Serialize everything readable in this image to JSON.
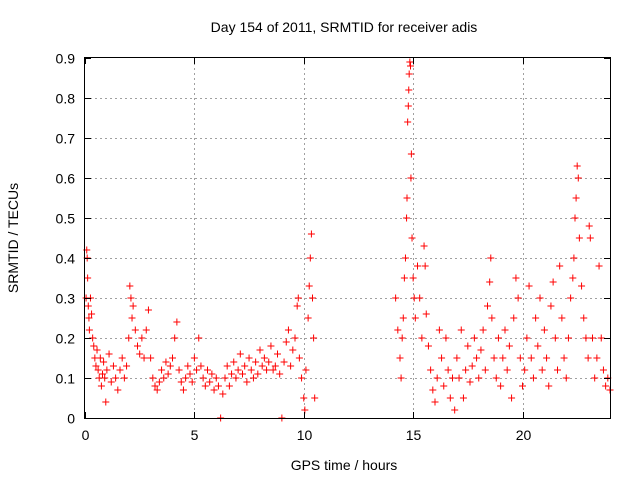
{
  "chart_data": {
    "type": "scatter",
    "title": "Day 154 of 2011, SRMTID for receiver adis",
    "xlabel": "GPS time / hours",
    "ylabel": "SRMTID / TECUs",
    "xlim": [
      0,
      24
    ],
    "ylim": [
      0,
      0.9
    ],
    "xticks": [
      0,
      5,
      10,
      15,
      20
    ],
    "yticks": [
      0,
      0.1,
      0.2,
      0.3,
      0.4,
      0.5,
      0.6,
      0.7,
      0.8,
      0.9
    ],
    "grid": true,
    "marker": "plus",
    "color": "#ff0000",
    "series": [
      {
        "name": "SRMTID",
        "points": [
          [
            0.05,
            0.3
          ],
          [
            0.08,
            0.42
          ],
          [
            0.1,
            0.4
          ],
          [
            0.12,
            0.35
          ],
          [
            0.15,
            0.28
          ],
          [
            0.18,
            0.25
          ],
          [
            0.2,
            0.22
          ],
          [
            0.25,
            0.3
          ],
          [
            0.3,
            0.26
          ],
          [
            0.35,
            0.2
          ],
          [
            0.4,
            0.18
          ],
          [
            0.45,
            0.15
          ],
          [
            0.5,
            0.13
          ],
          [
            0.55,
            0.17
          ],
          [
            0.6,
            0.12
          ],
          [
            0.65,
            0.1
          ],
          [
            0.7,
            0.15
          ],
          [
            0.75,
            0.08
          ],
          [
            0.8,
            0.11
          ],
          [
            0.85,
            0.14
          ],
          [
            0.9,
            0.1
          ],
          [
            0.95,
            0.04
          ],
          [
            1.0,
            0.12
          ],
          [
            1.1,
            0.16
          ],
          [
            1.2,
            0.09
          ],
          [
            1.3,
            0.13
          ],
          [
            1.4,
            0.1
          ],
          [
            1.5,
            0.07
          ],
          [
            1.6,
            0.12
          ],
          [
            1.7,
            0.15
          ],
          [
            1.8,
            0.1
          ],
          [
            1.9,
            0.13
          ],
          [
            2.0,
            0.2
          ],
          [
            2.05,
            0.33
          ],
          [
            2.1,
            0.3
          ],
          [
            2.15,
            0.25
          ],
          [
            2.2,
            0.28
          ],
          [
            2.3,
            0.22
          ],
          [
            2.4,
            0.18
          ],
          [
            2.5,
            0.16
          ],
          [
            2.6,
            0.2
          ],
          [
            2.7,
            0.15
          ],
          [
            2.8,
            0.22
          ],
          [
            2.9,
            0.27
          ],
          [
            3.0,
            0.15
          ],
          [
            3.1,
            0.1
          ],
          [
            3.2,
            0.08
          ],
          [
            3.3,
            0.07
          ],
          [
            3.4,
            0.09
          ],
          [
            3.5,
            0.12
          ],
          [
            3.6,
            0.1
          ],
          [
            3.7,
            0.14
          ],
          [
            3.8,
            0.11
          ],
          [
            3.9,
            0.13
          ],
          [
            4.0,
            0.15
          ],
          [
            4.1,
            0.2
          ],
          [
            4.2,
            0.24
          ],
          [
            4.3,
            0.12
          ],
          [
            4.4,
            0.09
          ],
          [
            4.5,
            0.07
          ],
          [
            4.6,
            0.1
          ],
          [
            4.7,
            0.13
          ],
          [
            4.8,
            0.11
          ],
          [
            4.9,
            0.09
          ],
          [
            5.0,
            0.15
          ],
          [
            5.1,
            0.12
          ],
          [
            5.2,
            0.2
          ],
          [
            5.3,
            0.13
          ],
          [
            5.4,
            0.1
          ],
          [
            5.5,
            0.08
          ],
          [
            5.6,
            0.12
          ],
          [
            5.7,
            0.09
          ],
          [
            5.8,
            0.11
          ],
          [
            5.9,
            0.07
          ],
          [
            6.0,
            0.1
          ],
          [
            6.1,
            0.08
          ],
          [
            6.2,
            0.0
          ],
          [
            6.3,
            0.06
          ],
          [
            6.4,
            0.1
          ],
          [
            6.5,
            0.13
          ],
          [
            6.6,
            0.08
          ],
          [
            6.7,
            0.11
          ],
          [
            6.8,
            0.14
          ],
          [
            6.9,
            0.1
          ],
          [
            7.0,
            0.12
          ],
          [
            7.1,
            0.16
          ],
          [
            7.2,
            0.11
          ],
          [
            7.3,
            0.13
          ],
          [
            7.4,
            0.09
          ],
          [
            7.5,
            0.15
          ],
          [
            7.6,
            0.12
          ],
          [
            7.7,
            0.1
          ],
          [
            7.8,
            0.14
          ],
          [
            7.9,
            0.11
          ],
          [
            8.0,
            0.17
          ],
          [
            8.1,
            0.13
          ],
          [
            8.2,
            0.15
          ],
          [
            8.3,
            0.12
          ],
          [
            8.4,
            0.14
          ],
          [
            8.5,
            0.18
          ],
          [
            8.6,
            0.12
          ],
          [
            8.7,
            0.13
          ],
          [
            8.8,
            0.16
          ],
          [
            8.9,
            0.11
          ],
          [
            9.0,
            0.0
          ],
          [
            9.1,
            0.14
          ],
          [
            9.2,
            0.19
          ],
          [
            9.3,
            0.22
          ],
          [
            9.4,
            0.13
          ],
          [
            9.5,
            0.17
          ],
          [
            9.6,
            0.2
          ],
          [
            9.7,
            0.28
          ],
          [
            9.75,
            0.3
          ],
          [
            9.8,
            0.15
          ],
          [
            9.9,
            0.1
          ],
          [
            10.0,
            0.05
          ],
          [
            10.05,
            0.02
          ],
          [
            10.1,
            0.12
          ],
          [
            10.2,
            0.25
          ],
          [
            10.25,
            0.33
          ],
          [
            10.3,
            0.4
          ],
          [
            10.35,
            0.46
          ],
          [
            10.4,
            0.3
          ],
          [
            10.45,
            0.2
          ],
          [
            10.5,
            0.05
          ],
          [
            14.2,
            0.3
          ],
          [
            14.3,
            0.22
          ],
          [
            14.4,
            0.15
          ],
          [
            14.45,
            0.1
          ],
          [
            14.5,
            0.2
          ],
          [
            14.55,
            0.25
          ],
          [
            14.6,
            0.35
          ],
          [
            14.65,
            0.4
          ],
          [
            14.7,
            0.5
          ],
          [
            14.72,
            0.55
          ],
          [
            14.75,
            0.74
          ],
          [
            14.78,
            0.78
          ],
          [
            14.8,
            0.82
          ],
          [
            14.82,
            0.86
          ],
          [
            14.85,
            0.89
          ],
          [
            14.88,
            0.88
          ],
          [
            14.9,
            0.6
          ],
          [
            14.92,
            0.66
          ],
          [
            14.95,
            0.45
          ],
          [
            15.0,
            0.35
          ],
          [
            15.05,
            0.3
          ],
          [
            15.1,
            0.25
          ],
          [
            15.2,
            0.38
          ],
          [
            15.3,
            0.3
          ],
          [
            15.4,
            0.2
          ],
          [
            15.5,
            0.43
          ],
          [
            15.55,
            0.38
          ],
          [
            15.6,
            0.26
          ],
          [
            15.7,
            0.18
          ],
          [
            15.8,
            0.12
          ],
          [
            15.9,
            0.07
          ],
          [
            16.0,
            0.04
          ],
          [
            16.1,
            0.1
          ],
          [
            16.2,
            0.22
          ],
          [
            16.3,
            0.15
          ],
          [
            16.4,
            0.08
          ],
          [
            16.5,
            0.2
          ],
          [
            16.6,
            0.12
          ],
          [
            16.7,
            0.05
          ],
          [
            16.8,
            0.1
          ],
          [
            16.9,
            0.02
          ],
          [
            17.0,
            0.15
          ],
          [
            17.1,
            0.1
          ],
          [
            17.2,
            0.22
          ],
          [
            17.3,
            0.05
          ],
          [
            17.4,
            0.12
          ],
          [
            17.5,
            0.18
          ],
          [
            17.6,
            0.09
          ],
          [
            17.7,
            0.13
          ],
          [
            17.8,
            0.2
          ],
          [
            17.9,
            0.15
          ],
          [
            18.0,
            0.1
          ],
          [
            18.1,
            0.17
          ],
          [
            18.2,
            0.22
          ],
          [
            18.3,
            0.12
          ],
          [
            18.4,
            0.28
          ],
          [
            18.5,
            0.34
          ],
          [
            18.55,
            0.4
          ],
          [
            18.6,
            0.25
          ],
          [
            18.7,
            0.15
          ],
          [
            18.8,
            0.1
          ],
          [
            18.9,
            0.2
          ],
          [
            19.0,
            0.08
          ],
          [
            19.1,
            0.15
          ],
          [
            19.2,
            0.22
          ],
          [
            19.3,
            0.12
          ],
          [
            19.4,
            0.18
          ],
          [
            19.5,
            0.05
          ],
          [
            19.6,
            0.25
          ],
          [
            19.7,
            0.35
          ],
          [
            19.8,
            0.3
          ],
          [
            19.9,
            0.15
          ],
          [
            20.0,
            0.08
          ],
          [
            20.1,
            0.12
          ],
          [
            20.2,
            0.2
          ],
          [
            20.3,
            0.33
          ],
          [
            20.4,
            0.15
          ],
          [
            20.5,
            0.1
          ],
          [
            20.6,
            0.25
          ],
          [
            20.7,
            0.18
          ],
          [
            20.8,
            0.3
          ],
          [
            20.9,
            0.12
          ],
          [
            21.0,
            0.22
          ],
          [
            21.1,
            0.15
          ],
          [
            21.2,
            0.08
          ],
          [
            21.3,
            0.28
          ],
          [
            21.4,
            0.34
          ],
          [
            21.5,
            0.2
          ],
          [
            21.6,
            0.12
          ],
          [
            21.7,
            0.38
          ],
          [
            21.8,
            0.25
          ],
          [
            21.9,
            0.15
          ],
          [
            22.0,
            0.1
          ],
          [
            22.1,
            0.2
          ],
          [
            22.2,
            0.3
          ],
          [
            22.3,
            0.35
          ],
          [
            22.35,
            0.4
          ],
          [
            22.4,
            0.5
          ],
          [
            22.45,
            0.55
          ],
          [
            22.5,
            0.63
          ],
          [
            22.55,
            0.6
          ],
          [
            22.6,
            0.45
          ],
          [
            22.7,
            0.33
          ],
          [
            22.8,
            0.25
          ],
          [
            22.9,
            0.2
          ],
          [
            23.0,
            0.15
          ],
          [
            23.05,
            0.48
          ],
          [
            23.1,
            0.45
          ],
          [
            23.2,
            0.2
          ],
          [
            23.3,
            0.1
          ],
          [
            23.4,
            0.15
          ],
          [
            23.5,
            0.38
          ],
          [
            23.6,
            0.2
          ],
          [
            23.7,
            0.12
          ],
          [
            23.8,
            0.08
          ],
          [
            23.9,
            0.1
          ],
          [
            24.0,
            0.07
          ]
        ]
      }
    ]
  }
}
